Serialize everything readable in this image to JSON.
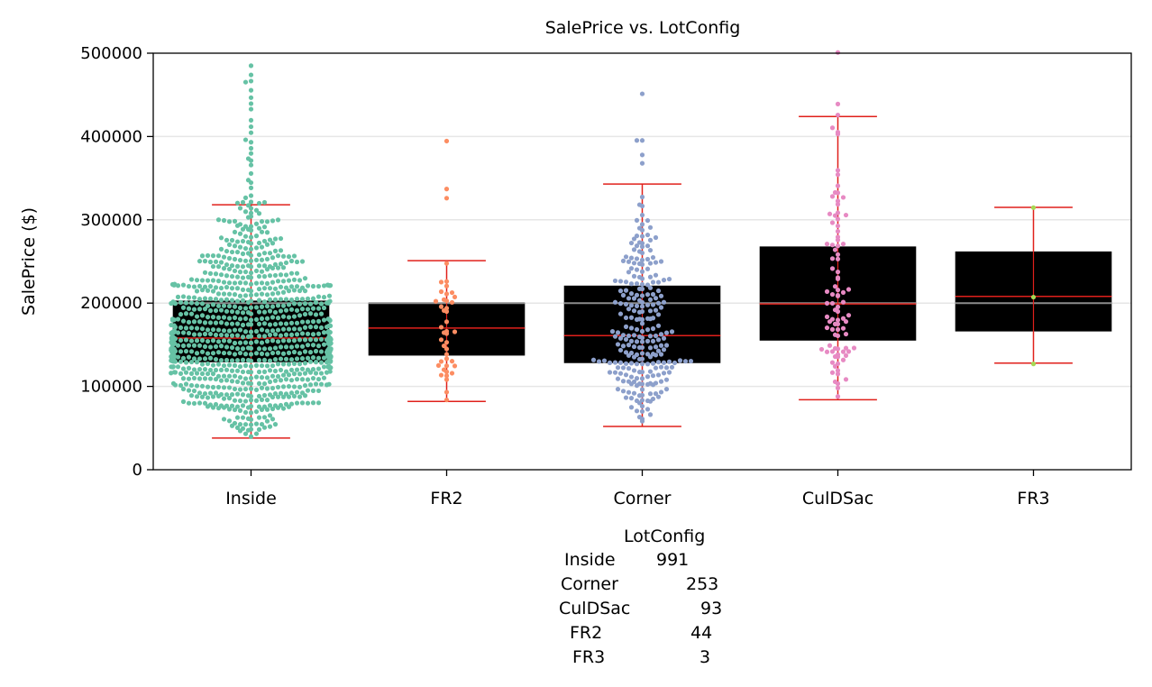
{
  "chart_data": {
    "type": "box",
    "title": "SalePrice vs. LotConfig",
    "xlabel": "",
    "ylabel": "SalePrice ($)",
    "ylim": [
      0,
      500000
    ],
    "yticks": [
      "0",
      "100000",
      "200000",
      "300000",
      "400000",
      "500000"
    ],
    "categories": [
      "Inside",
      "FR2",
      "Corner",
      "CulDSac",
      "FR3"
    ],
    "reference_line": 200000,
    "grid": "horizontal",
    "boxes": [
      {
        "name": "Inside",
        "whisker_low": 38000,
        "q1": 129000,
        "median": 158000,
        "q3": 203000,
        "whisker_high": 318000,
        "color": "#66c2a5",
        "n": 991
      },
      {
        "name": "FR2",
        "whisker_low": 82000,
        "q1": 137000,
        "median": 170000,
        "q3": 200000,
        "whisker_high": 251000,
        "color": "#fc8d62",
        "n": 44
      },
      {
        "name": "Corner",
        "whisker_low": 52000,
        "q1": 128000,
        "median": 161000,
        "q3": 221000,
        "whisker_high": 343000,
        "color": "#8da0cb",
        "n": 253
      },
      {
        "name": "CulDSac",
        "whisker_low": 84000,
        "q1": 155000,
        "median": 199000,
        "q3": 268000,
        "whisker_high": 424000,
        "color": "#e78ac3",
        "n": 93
      },
      {
        "name": "FR3",
        "whisker_low": 128000,
        "q1": 166000,
        "median": 208000,
        "q3": 262000,
        "whisker_high": 315000,
        "color": "#a6d854",
        "n": 3
      }
    ],
    "outliers": [
      {
        "category": "Inside",
        "values": [
          485000,
          475000,
          466000,
          466000,
          456000,
          446000,
          440000,
          432000,
          420000,
          412000,
          405000,
          395000,
          393000,
          385000,
          380000,
          374000,
          372000,
          365000,
          355000,
          348000,
          344000,
          338000,
          330000,
          326000,
          322000,
          320000,
          320000,
          320000,
          320000
        ]
      },
      {
        "category": "FR2",
        "values": [
          394000,
          338000,
          327000
        ]
      },
      {
        "category": "Corner",
        "values": [
          452000,
          395000,
          395000,
          378000,
          368000
        ]
      },
      {
        "category": "CulDSac",
        "values": [
          500000,
          440000,
          425000,
          410000,
          402000
        ]
      },
      {
        "category": "FR3",
        "values": []
      }
    ]
  },
  "counts_table": {
    "header": "LotConfig",
    "rows": [
      {
        "label": "Inside",
        "value": "991"
      },
      {
        "label": "Corner",
        "value": "253"
      },
      {
        "label": "CulDSac",
        "value": "93"
      },
      {
        "label": "FR2",
        "value": "44"
      },
      {
        "label": "FR3",
        "value": "3"
      }
    ]
  }
}
